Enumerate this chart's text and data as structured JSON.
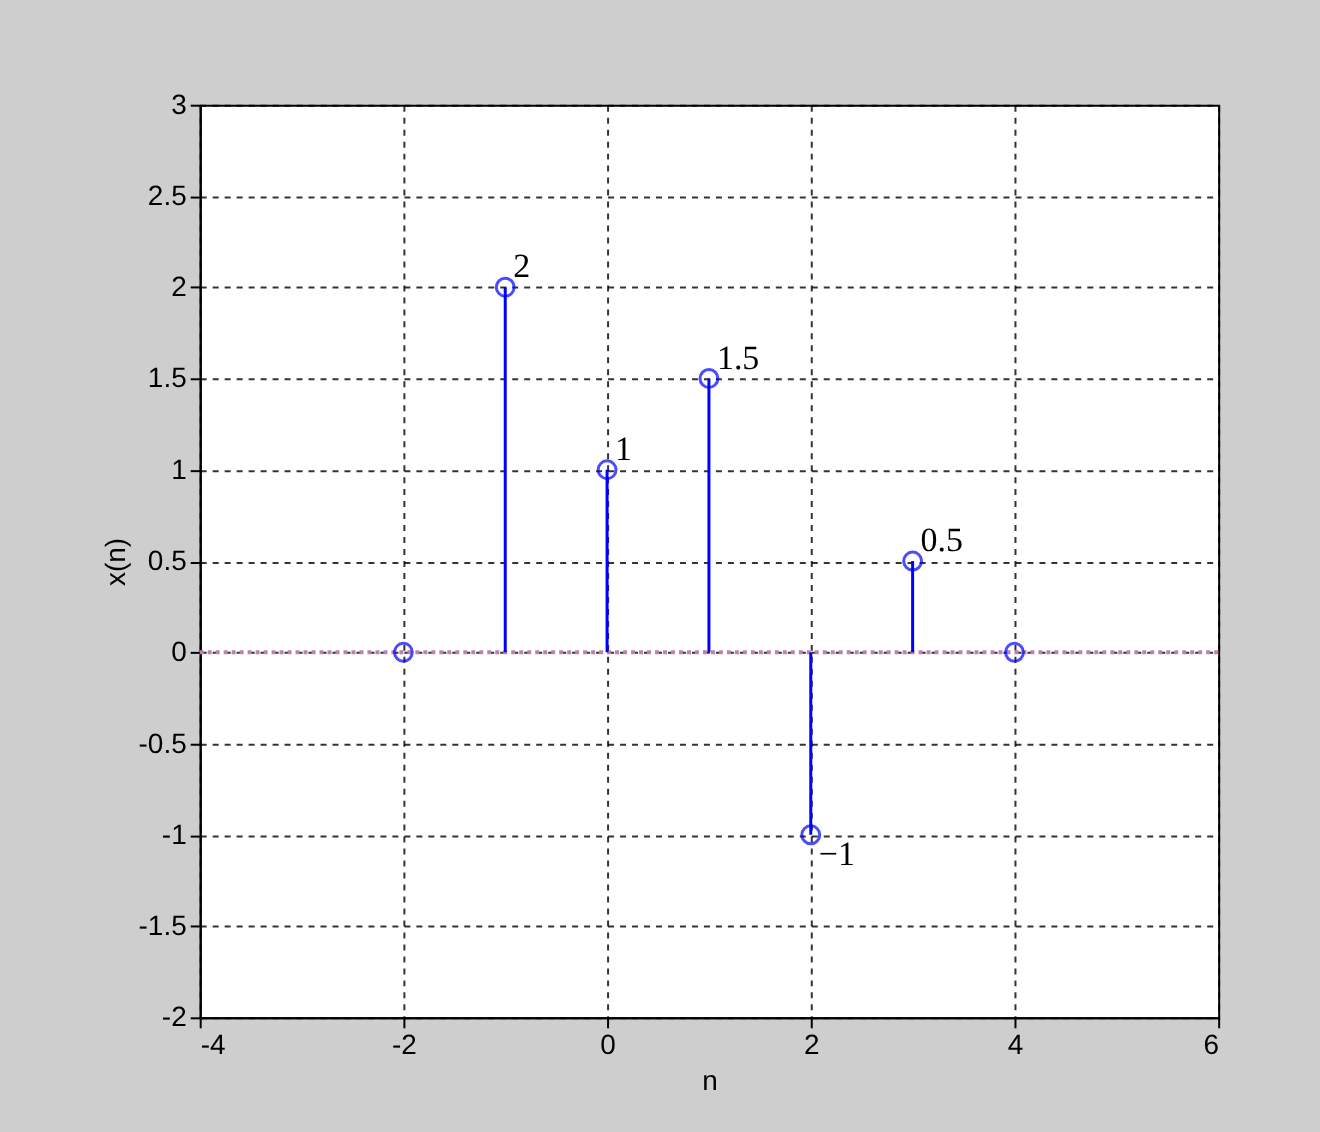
{
  "chart_data": {
    "type": "lollipop",
    "xlabel": "n",
    "ylabel": "x(n)",
    "x": [
      -2,
      -1,
      0,
      1,
      2,
      3,
      4
    ],
    "series": [
      {
        "color": "#0000ff",
        "values": [
          0,
          2,
          1,
          1.5,
          -1,
          0.5,
          0
        ]
      }
    ],
    "marker": "circle",
    "grid": true,
    "xlim": [
      -4,
      6
    ],
    "xticks": [
      -4,
      -2,
      0,
      2,
      4,
      6
    ],
    "ylim": [
      -2,
      3
    ],
    "yticks": [
      -2,
      -1.5,
      -1,
      -0.5,
      0,
      0.5,
      1,
      1.5,
      2,
      2.5,
      3
    ],
    "ref_lines": [
      {
        "axis": "y",
        "value": 0,
        "color": "#c080b0"
      }
    ],
    "annotations": [
      {
        "text": "2",
        "x": -1,
        "y": 2
      },
      {
        "text": "1",
        "x": 0,
        "y": 1
      },
      {
        "text": "1.5",
        "x": 1,
        "y": 1.5
      },
      {
        "text": "−1",
        "x": 2,
        "y": -1
      },
      {
        "text": "0.5",
        "x": 3,
        "y": 0.5
      }
    ]
  }
}
